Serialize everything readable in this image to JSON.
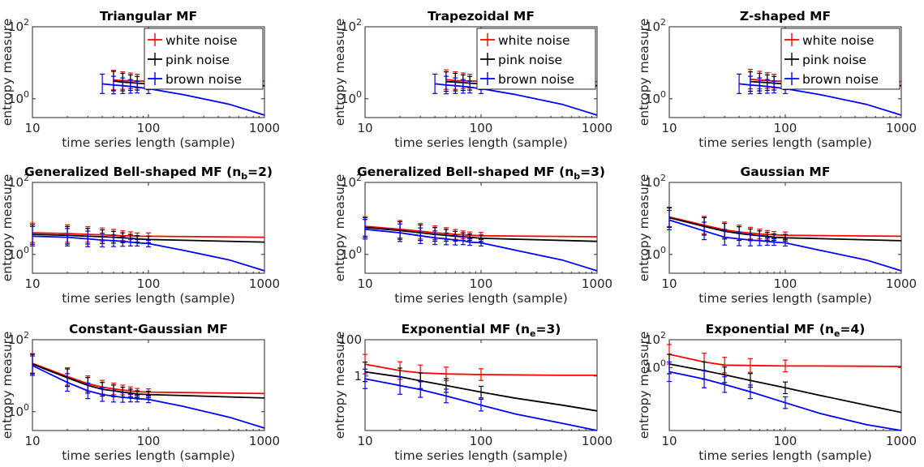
{
  "figure": {
    "ylabel": "entropy measure",
    "xlabel": "time series length (sample)"
  },
  "chart_data": [
    {
      "type": "line",
      "title": "Triangular MF",
      "xlabel": "time series length (sample)",
      "ylabel": "entropy measure",
      "xscale": "log",
      "yscale": "log",
      "xlim": [
        10,
        1000
      ],
      "ylim": [
        0.3,
        100
      ],
      "xticks": [
        "10",
        "100",
        "1000"
      ],
      "yticks": [
        {
          "v": 1,
          "label": "10^0"
        },
        {
          "v": 100,
          "label": "10^2"
        }
      ],
      "legend": {
        "position": "top-right",
        "entries": [
          "white noise",
          "pink noise",
          "brown noise"
        ]
      },
      "series": [
        {
          "name": "white noise",
          "color": "#ff0000",
          "x": [
            50,
            60,
            70,
            80,
            100,
            1000
          ],
          "y": [
            3.3,
            3.2,
            3.15,
            3.1,
            3.1,
            3.1
          ]
        },
        {
          "name": "pink noise",
          "color": "#000000",
          "x": [
            50,
            60,
            70,
            80,
            100,
            1000
          ],
          "y": [
            3.1,
            2.9,
            2.8,
            2.7,
            2.6,
            2.3
          ]
        },
        {
          "name": "brown noise",
          "color": "#0000ff",
          "x": [
            40,
            50,
            60,
            70,
            80,
            100,
            200,
            500,
            1000
          ],
          "y": [
            2.6,
            2.4,
            2.3,
            2.2,
            2.1,
            1.9,
            1.3,
            0.7,
            0.35
          ]
        }
      ]
    },
    {
      "type": "line",
      "title": "Trapezoidal MF",
      "xlabel": "time series length (sample)",
      "ylabel": "entropy measure",
      "xscale": "log",
      "yscale": "log",
      "xlim": [
        10,
        1000
      ],
      "ylim": [
        0.3,
        100
      ],
      "xticks": [
        "10",
        "100",
        "1000"
      ],
      "yticks": [
        {
          "v": 1,
          "label": "10^0"
        },
        {
          "v": 100,
          "label": "10^2"
        }
      ],
      "legend": {
        "position": "top-right",
        "entries": [
          "white noise",
          "pink noise",
          "brown noise"
        ]
      },
      "series": [
        {
          "name": "white noise",
          "color": "#ff0000",
          "x": [
            50,
            60,
            70,
            80,
            100,
            1000
          ],
          "y": [
            3.4,
            3.2,
            3.15,
            3.1,
            3.1,
            3.0
          ]
        },
        {
          "name": "pink noise",
          "color": "#000000",
          "x": [
            50,
            60,
            70,
            80,
            100,
            1000
          ],
          "y": [
            3.0,
            2.9,
            2.8,
            2.7,
            2.6,
            2.3
          ]
        },
        {
          "name": "brown noise",
          "color": "#0000ff",
          "x": [
            40,
            50,
            60,
            70,
            80,
            100,
            200,
            500,
            1000
          ],
          "y": [
            2.6,
            2.4,
            2.3,
            2.2,
            2.1,
            1.9,
            1.3,
            0.7,
            0.35
          ]
        }
      ]
    },
    {
      "type": "line",
      "title": "Z-shaped MF",
      "xlabel": "time series length (sample)",
      "ylabel": "entropy measure",
      "xscale": "log",
      "yscale": "log",
      "xlim": [
        10,
        1000
      ],
      "ylim": [
        0.3,
        100
      ],
      "xticks": [
        "10",
        "100",
        "1000"
      ],
      "yticks": [
        {
          "v": 1,
          "label": "10^0"
        },
        {
          "v": 100,
          "label": "10^2"
        }
      ],
      "legend": {
        "position": "top-right",
        "entries": [
          "white noise",
          "pink noise",
          "brown noise"
        ]
      },
      "series": [
        {
          "name": "white noise",
          "color": "#ff0000",
          "x": [
            50,
            60,
            70,
            80,
            100,
            1000
          ],
          "y": [
            3.5,
            3.3,
            3.2,
            3.1,
            3.1,
            3.0
          ]
        },
        {
          "name": "pink noise",
          "color": "#000000",
          "x": [
            50,
            60,
            70,
            80,
            100,
            1000
          ],
          "y": [
            3.0,
            2.9,
            2.8,
            2.7,
            2.6,
            2.3
          ]
        },
        {
          "name": "brown noise",
          "color": "#0000ff",
          "x": [
            40,
            50,
            60,
            70,
            80,
            100,
            200,
            500,
            1000
          ],
          "y": [
            2.6,
            2.4,
            2.3,
            2.2,
            2.1,
            1.9,
            1.3,
            0.7,
            0.35
          ]
        }
      ]
    },
    {
      "type": "line",
      "title": "Generalized Bell-shaped MF (n_b=2)",
      "xlabel": "time series length (sample)",
      "ylabel": "entropy measure",
      "xscale": "log",
      "yscale": "log",
      "xlim": [
        10,
        1000
      ],
      "ylim": [
        0.3,
        100
      ],
      "xticks": [
        "10",
        "100",
        "1000"
      ],
      "yticks": [
        {
          "v": 1,
          "label": "10^0"
        },
        {
          "v": 100,
          "label": "10^2"
        }
      ],
      "series": [
        {
          "name": "white noise",
          "color": "#ff0000",
          "x": [
            10,
            20,
            30,
            40,
            50,
            60,
            70,
            80,
            100,
            1000
          ],
          "y": [
            4.0,
            3.8,
            3.6,
            3.5,
            3.4,
            3.3,
            3.3,
            3.2,
            3.2,
            3.0
          ]
        },
        {
          "name": "pink noise",
          "color": "#000000",
          "x": [
            10,
            20,
            30,
            40,
            50,
            60,
            70,
            80,
            100,
            1000
          ],
          "y": [
            3.6,
            3.4,
            3.2,
            3.1,
            3.0,
            2.9,
            2.8,
            2.7,
            2.6,
            2.2
          ]
        },
        {
          "name": "brown noise",
          "color": "#0000ff",
          "x": [
            10,
            20,
            30,
            40,
            50,
            60,
            70,
            80,
            100,
            200,
            500,
            1000
          ],
          "y": [
            3.2,
            3.0,
            2.7,
            2.5,
            2.4,
            2.3,
            2.2,
            2.1,
            2.0,
            1.3,
            0.7,
            0.35
          ]
        }
      ]
    },
    {
      "type": "line",
      "title": "Generalized Bell-shaped MF (n_b=3)",
      "xlabel": "time series length (sample)",
      "ylabel": "entropy measure",
      "xscale": "log",
      "yscale": "log",
      "xlim": [
        10,
        1000
      ],
      "ylim": [
        0.3,
        100
      ],
      "xticks": [
        "10",
        "100",
        "1000"
      ],
      "yticks": [
        {
          "v": 1,
          "label": "10^0"
        },
        {
          "v": 100,
          "label": "10^2"
        }
      ],
      "series": [
        {
          "name": "white noise",
          "color": "#ff0000",
          "x": [
            10,
            20,
            30,
            40,
            50,
            60,
            70,
            80,
            100,
            1000
          ],
          "y": [
            6.0,
            5.0,
            4.4,
            4.0,
            3.8,
            3.6,
            3.5,
            3.4,
            3.3,
            3.1
          ]
        },
        {
          "name": "pink noise",
          "color": "#000000",
          "x": [
            10,
            20,
            30,
            40,
            50,
            60,
            70,
            80,
            100,
            1000
          ],
          "y": [
            5.6,
            4.6,
            4.0,
            3.6,
            3.4,
            3.2,
            3.1,
            3.0,
            2.8,
            2.3
          ]
        },
        {
          "name": "brown noise",
          "color": "#0000ff",
          "x": [
            10,
            20,
            30,
            40,
            50,
            60,
            70,
            80,
            100,
            200,
            500,
            1000
          ],
          "y": [
            5.0,
            4.0,
            3.3,
            2.9,
            2.7,
            2.5,
            2.4,
            2.2,
            2.1,
            1.3,
            0.7,
            0.35
          ]
        }
      ]
    },
    {
      "type": "line",
      "title": "Gaussian MF",
      "xlabel": "time series length (sample)",
      "ylabel": "entropy measure",
      "xscale": "log",
      "yscale": "log",
      "xlim": [
        10,
        1000
      ],
      "ylim": [
        0.3,
        100
      ],
      "xticks": [
        "10",
        "100",
        "1000"
      ],
      "yticks": [
        {
          "v": 1,
          "label": "10^0"
        },
        {
          "v": 100,
          "label": "10^2"
        }
      ],
      "series": [
        {
          "name": "white noise",
          "color": "#ff0000",
          "x": [
            10,
            20,
            30,
            40,
            50,
            60,
            70,
            80,
            100,
            1000
          ],
          "y": [
            11,
            6.5,
            4.8,
            4.2,
            3.9,
            3.7,
            3.6,
            3.5,
            3.4,
            3.2
          ]
        },
        {
          "name": "pink noise",
          "color": "#000000",
          "x": [
            10,
            20,
            30,
            40,
            50,
            60,
            70,
            80,
            100,
            1000
          ],
          "y": [
            10.5,
            6.0,
            4.4,
            3.8,
            3.5,
            3.3,
            3.2,
            3.0,
            2.9,
            2.4
          ]
        },
        {
          "name": "brown noise",
          "color": "#0000ff",
          "x": [
            10,
            20,
            30,
            40,
            50,
            60,
            70,
            80,
            100,
            200,
            500,
            1000
          ],
          "y": [
            9.0,
            4.5,
            3.0,
            2.7,
            2.5,
            2.4,
            2.3,
            2.2,
            2.1,
            1.3,
            0.7,
            0.35
          ]
        }
      ]
    },
    {
      "type": "line",
      "title": "Constant-Gaussian MF",
      "xlabel": "time series length (sample)",
      "ylabel": "entropy measure",
      "xscale": "log",
      "yscale": "log",
      "xlim": [
        10,
        1000
      ],
      "ylim": [
        0.3,
        100
      ],
      "xticks": [
        "10",
        "100",
        "1000"
      ],
      "yticks": [
        {
          "v": 1,
          "label": "10^0"
        },
        {
          "v": 100,
          "label": "10^2"
        }
      ],
      "series": [
        {
          "name": "white noise",
          "color": "#ff0000",
          "x": [
            10,
            20,
            30,
            40,
            50,
            60,
            70,
            80,
            100,
            1000
          ],
          "y": [
            22,
            9.5,
            6.0,
            4.8,
            4.3,
            4.0,
            3.8,
            3.6,
            3.5,
            3.2
          ]
        },
        {
          "name": "pink noise",
          "color": "#000000",
          "x": [
            10,
            20,
            30,
            40,
            50,
            60,
            70,
            80,
            100,
            1000
          ],
          "y": [
            21,
            8.8,
            5.4,
            4.2,
            3.8,
            3.5,
            3.3,
            3.1,
            3.0,
            2.4
          ]
        },
        {
          "name": "brown noise",
          "color": "#0000ff",
          "x": [
            10,
            20,
            30,
            40,
            50,
            60,
            70,
            80,
            100,
            200,
            500,
            1000
          ],
          "y": [
            19,
            6.5,
            3.8,
            3.0,
            2.7,
            2.5,
            2.4,
            2.3,
            2.2,
            1.4,
            0.7,
            0.35
          ]
        }
      ]
    },
    {
      "type": "line",
      "title": "Exponential MF (n_e=3)",
      "xlabel": "time series length (sample)",
      "ylabel": "entropy measure",
      "xscale": "log",
      "yscale": "log",
      "xlim": [
        10,
        1000
      ],
      "ylim": [
        0.001,
        100
      ],
      "xticks": [
        "10",
        "100",
        "1000"
      ],
      "yticks": [
        {
          "v": 1,
          "label": "1"
        },
        {
          "v": 100,
          "label": "100"
        }
      ],
      "series": [
        {
          "name": "white noise",
          "color": "#ff0000",
          "x": [
            10,
            20,
            30,
            50,
            100,
            200,
            500,
            1000
          ],
          "y": [
            4.5,
            2.0,
            1.5,
            1.3,
            1.2,
            1.15,
            1.1,
            1.1
          ]
        },
        {
          "name": "pink noise",
          "color": "#000000",
          "x": [
            10,
            20,
            30,
            50,
            100,
            200,
            500,
            1000
          ],
          "y": [
            1.7,
            0.9,
            0.55,
            0.3,
            0.13,
            0.06,
            0.025,
            0.012
          ]
        },
        {
          "name": "brown noise",
          "color": "#0000ff",
          "x": [
            10,
            20,
            30,
            50,
            100,
            200,
            500,
            1000
          ],
          "y": [
            0.7,
            0.3,
            0.18,
            0.08,
            0.025,
            0.008,
            0.0025,
            0.001
          ]
        }
      ]
    },
    {
      "type": "line",
      "title": "Exponential MF (n_e=4)",
      "xlabel": "time series length (sample)",
      "ylabel": "entropy measure",
      "xscale": "log",
      "yscale": "log",
      "xlim": [
        10,
        1000
      ],
      "ylim": [
        3e-05,
        100
      ],
      "xticks": [
        "10",
        "100",
        "1000"
      ],
      "yticks": [
        {
          "v": 1,
          "label": "10^0"
        },
        {
          "v": 100,
          "label": "10^2"
        }
      ],
      "series": [
        {
          "name": "white noise",
          "color": "#ff0000",
          "x": [
            10,
            20,
            30,
            50,
            100,
            200,
            500,
            1000
          ],
          "y": [
            9.0,
            2.5,
            1.5,
            1.4,
            1.3,
            1.3,
            1.25,
            1.2
          ]
        },
        {
          "name": "pink noise",
          "color": "#000000",
          "x": [
            10,
            20,
            30,
            50,
            100,
            200,
            500,
            1000
          ],
          "y": [
            1.8,
            0.6,
            0.3,
            0.12,
            0.035,
            0.01,
            0.002,
            0.0006
          ]
        },
        {
          "name": "brown noise",
          "color": "#0000ff",
          "x": [
            10,
            20,
            30,
            50,
            100,
            200,
            500,
            1000
          ],
          "y": [
            0.5,
            0.15,
            0.06,
            0.018,
            0.003,
            0.0005,
            8e-05,
            3e-05
          ]
        }
      ]
    }
  ]
}
